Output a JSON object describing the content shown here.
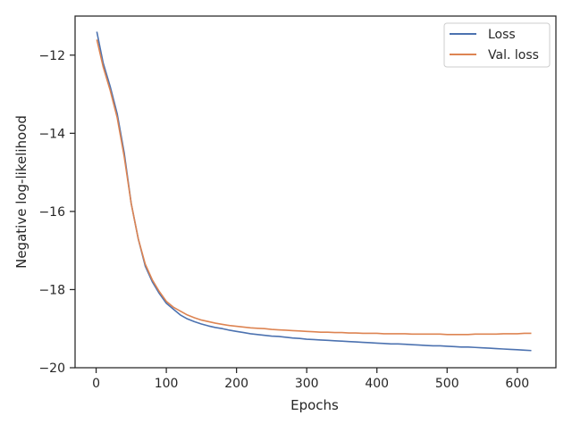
{
  "chart_data": {
    "type": "line",
    "title": "",
    "xlabel": "Epochs",
    "ylabel": "Negative log-likelihood",
    "xlim": [
      -30,
      655
    ],
    "ylim": [
      -20.0,
      -11.0
    ],
    "grid": false,
    "legend_position": "top-right",
    "x_ticks": [
      0,
      100,
      200,
      300,
      400,
      500,
      600
    ],
    "x_tick_labels": [
      "0",
      "100",
      "200",
      "300",
      "400",
      "500",
      "600"
    ],
    "y_ticks": [
      -20,
      -18,
      -16,
      -14,
      -12
    ],
    "y_tick_labels": [
      "−20",
      "−18",
      "−16",
      "−14",
      "−12"
    ],
    "series": [
      {
        "name": "Loss",
        "color": "#4c72b0",
        "x": [
          1,
          10,
          20,
          30,
          40,
          50,
          60,
          70,
          80,
          90,
          100,
          110,
          120,
          130,
          140,
          150,
          160,
          170,
          180,
          190,
          200,
          210,
          220,
          230,
          240,
          250,
          260,
          270,
          280,
          290,
          300,
          310,
          320,
          330,
          340,
          350,
          360,
          370,
          380,
          390,
          400,
          410,
          420,
          430,
          440,
          450,
          460,
          470,
          480,
          490,
          500,
          510,
          520,
          530,
          540,
          550,
          560,
          570,
          580,
          590,
          600,
          610,
          620
        ],
        "values": [
          -11.4,
          -12.2,
          -12.8,
          -13.5,
          -14.5,
          -15.8,
          -16.7,
          -17.4,
          -17.8,
          -18.1,
          -18.35,
          -18.5,
          -18.65,
          -18.75,
          -18.82,
          -18.88,
          -18.93,
          -18.97,
          -19.0,
          -19.04,
          -19.07,
          -19.1,
          -19.13,
          -19.15,
          -19.17,
          -19.19,
          -19.2,
          -19.22,
          -19.24,
          -19.25,
          -19.27,
          -19.28,
          -19.29,
          -19.3,
          -19.31,
          -19.32,
          -19.33,
          -19.34,
          -19.35,
          -19.36,
          -19.37,
          -19.38,
          -19.39,
          -19.39,
          -19.4,
          -19.41,
          -19.42,
          -19.43,
          -19.44,
          -19.44,
          -19.45,
          -19.46,
          -19.47,
          -19.47,
          -19.48,
          -19.49,
          -19.5,
          -19.51,
          -19.52,
          -19.53,
          -19.54,
          -19.55,
          -19.56
        ]
      },
      {
        "name": "Val. loss",
        "color": "#dd8452",
        "x": [
          1,
          10,
          20,
          30,
          40,
          50,
          60,
          70,
          80,
          90,
          100,
          110,
          120,
          130,
          140,
          150,
          160,
          170,
          180,
          190,
          200,
          210,
          220,
          230,
          240,
          250,
          260,
          270,
          280,
          290,
          300,
          310,
          320,
          330,
          340,
          350,
          360,
          370,
          380,
          390,
          400,
          410,
          420,
          430,
          440,
          450,
          460,
          470,
          480,
          490,
          500,
          510,
          520,
          530,
          540,
          550,
          560,
          570,
          580,
          590,
          600,
          610,
          620
        ],
        "values": [
          -11.6,
          -12.3,
          -12.9,
          -13.6,
          -14.6,
          -15.8,
          -16.7,
          -17.35,
          -17.75,
          -18.05,
          -18.3,
          -18.45,
          -18.55,
          -18.65,
          -18.72,
          -18.78,
          -18.82,
          -18.86,
          -18.89,
          -18.92,
          -18.94,
          -18.96,
          -18.98,
          -18.99,
          -19.0,
          -19.02,
          -19.03,
          -19.04,
          -19.05,
          -19.06,
          -19.07,
          -19.08,
          -19.09,
          -19.09,
          -19.1,
          -19.1,
          -19.11,
          -19.11,
          -19.12,
          -19.12,
          -19.12,
          -19.13,
          -19.13,
          -19.13,
          -19.13,
          -19.14,
          -19.14,
          -19.14,
          -19.14,
          -19.14,
          -19.15,
          -19.15,
          -19.15,
          -19.15,
          -19.14,
          -19.14,
          -19.14,
          -19.14,
          -19.13,
          -19.13,
          -19.13,
          -19.12,
          -19.12
        ]
      }
    ]
  }
}
